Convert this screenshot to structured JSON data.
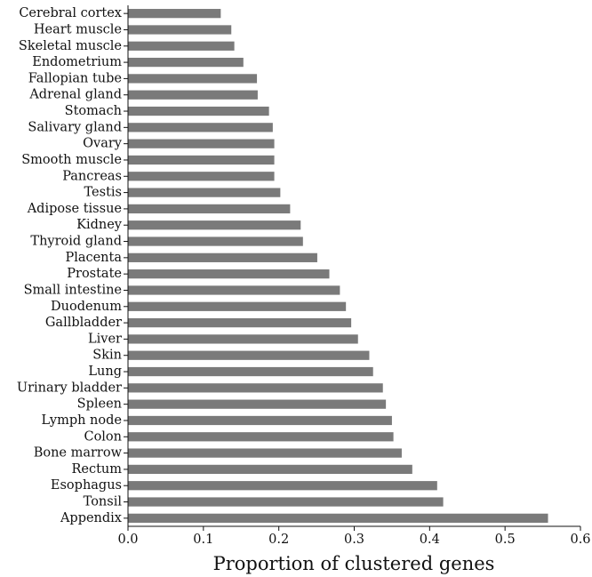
{
  "chart_data": {
    "type": "bar",
    "orientation": "horizontal",
    "title": "",
    "xlabel": "Proportion of clustered genes",
    "ylabel": "",
    "xlim": [
      0.0,
      0.6
    ],
    "xticks": [
      "0.0",
      "0.1",
      "0.2",
      "0.3",
      "0.4",
      "0.5",
      "0.6"
    ],
    "grid": false,
    "bar_color": "#7a7a7a",
    "categories": [
      "Cerebral cortex",
      "Heart muscle",
      "Skeletal muscle",
      "Endometrium",
      "Fallopian tube",
      "Adrenal gland",
      "Stomach",
      "Salivary gland",
      "Ovary",
      "Smooth muscle",
      "Pancreas",
      "Testis",
      "Adipose tissue",
      "Kidney",
      "Thyroid gland",
      "Placenta",
      "Prostate",
      "Small intestine",
      "Duodenum",
      "Gallbladder",
      "Liver",
      "Skin",
      "Lung",
      "Urinary bladder",
      "Spleen",
      "Lymph node",
      "Colon",
      "Bone marrow",
      "Rectum",
      "Esophagus",
      "Tonsil",
      "Appendix"
    ],
    "values": [
      0.123,
      0.137,
      0.141,
      0.153,
      0.171,
      0.172,
      0.187,
      0.192,
      0.194,
      0.194,
      0.194,
      0.202,
      0.215,
      0.229,
      0.232,
      0.251,
      0.267,
      0.281,
      0.289,
      0.296,
      0.305,
      0.32,
      0.325,
      0.338,
      0.342,
      0.35,
      0.352,
      0.363,
      0.377,
      0.41,
      0.418,
      0.557
    ]
  }
}
